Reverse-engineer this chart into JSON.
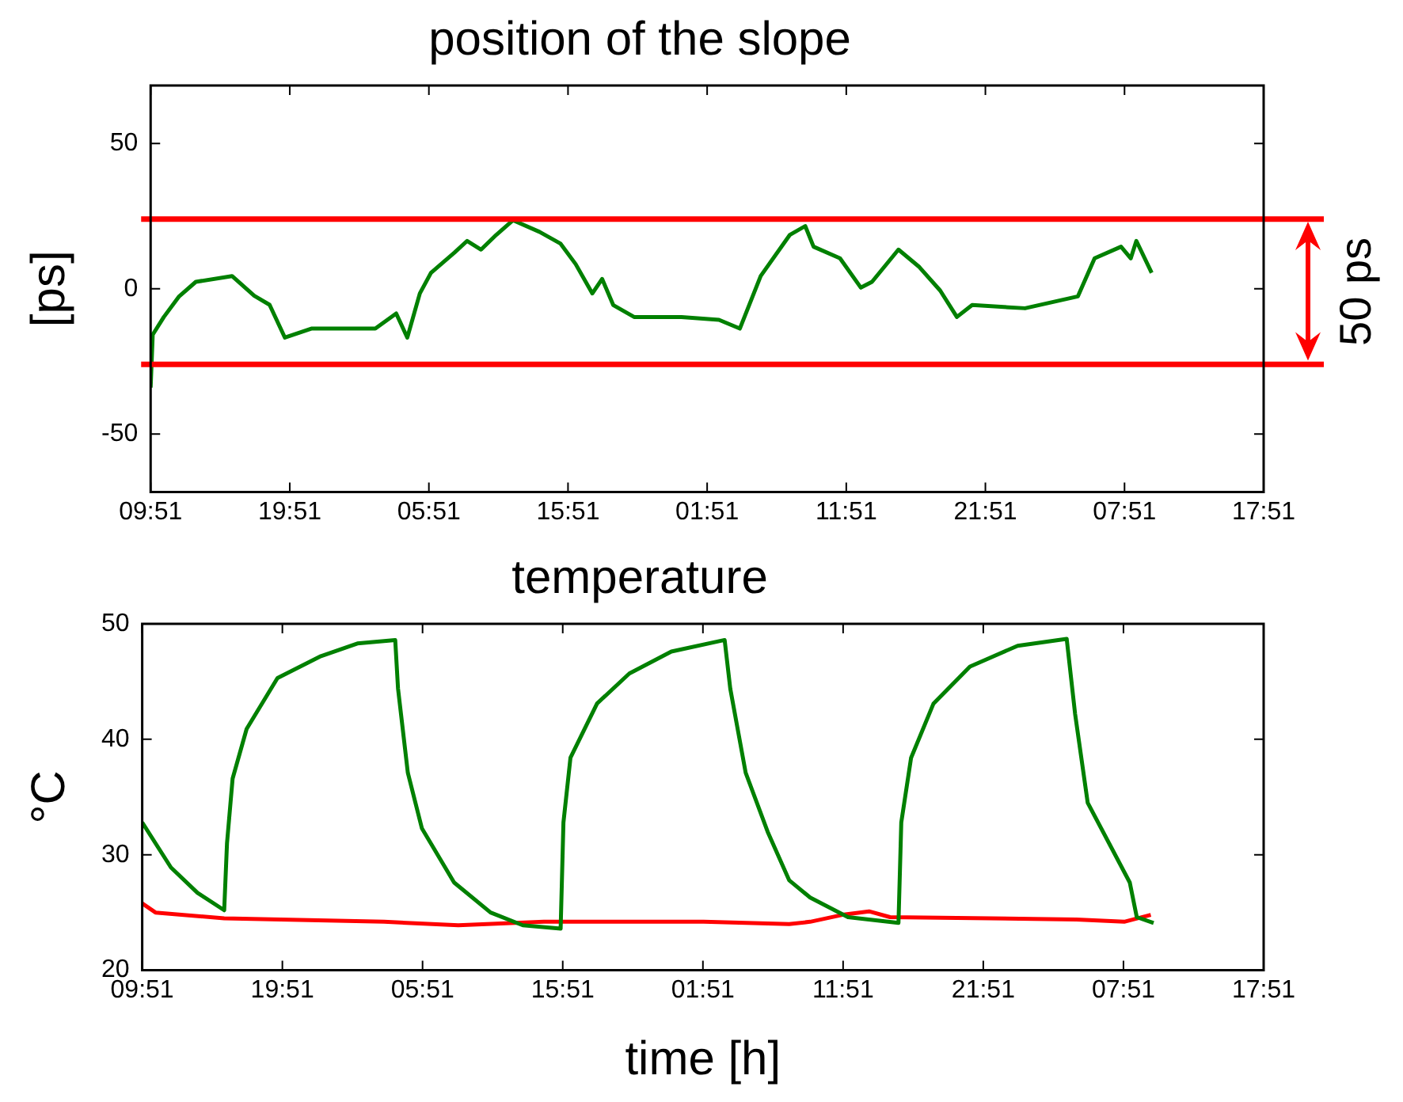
{
  "chart_data": [
    {
      "type": "line",
      "title": "position of the slope",
      "ylabel": "[ps]",
      "x": [
        "--01-01T09:51",
        "--01-01T10:00",
        "--01-01T10:48",
        "--01-01T11:54",
        "--01-01T13:06",
        "--01-01T15:42",
        "--01-01T17:18",
        "--01-01T18:24",
        "--01-01T19:30",
        "--01-01T21:24",
        "--01-01T23:42",
        "--01-02T02:00",
        "--01-02T03:30",
        "--01-02T04:18",
        "--01-02T05:12",
        "--01-02T06:00",
        "--01-02T07:42",
        "--01-02T08:36",
        "--01-02T09:36",
        "--01-02T10:42",
        "--01-02T11:54",
        "--01-02T13:48",
        "--01-02T15:18",
        "--01-02T16:24",
        "--01-02T17:36",
        "--01-02T18:18",
        "--01-02T19:06",
        "--01-02T20:36",
        "--01-03T00:00",
        "--01-03T02:42",
        "--01-03T04:12",
        "--01-03T05:42",
        "--01-03T07:48",
        "--01-03T08:54",
        "--01-03T09:30",
        "--01-03T11:24",
        "--01-03T12:54",
        "--01-03T13:42",
        "--01-03T15:36",
        "--01-03T17:06",
        "--01-03T18:36",
        "--01-03T19:48",
        "--01-03T20:54",
        "--01-04T00:42",
        "--01-04T04:30",
        "--01-04T05:42",
        "--01-04T07:36",
        "--01-04T08:18",
        "--01-04T08:42",
        "--01-04T09:48"
      ],
      "xlim": [
        "--01-01T09:51",
        "--01-04T17:51"
      ],
      "xticks": [
        {
          "value": "--01-01T09:51",
          "label": "09:51"
        },
        {
          "value": "--01-01T19:51",
          "label": "19:51"
        },
        {
          "value": "--01-02T05:51",
          "label": "05:51"
        },
        {
          "value": "--01-02T15:51",
          "label": "15:51"
        },
        {
          "value": "--01-03T01:51",
          "label": "01:51"
        },
        {
          "value": "--01-03T11:51",
          "label": "11:51"
        },
        {
          "value": "--01-03T21:51",
          "label": "21:51"
        },
        {
          "value": "--01-04T07:51",
          "label": "07:51"
        },
        {
          "value": "--01-04T17:51",
          "label": "17:51"
        }
      ],
      "ylim": [
        -70,
        70
      ],
      "yticks": [
        -50,
        0,
        50
      ],
      "series": [
        {
          "color": "#008000",
          "values": [
            -34,
            -15.8,
            -9.7,
            -2.6,
            2.4,
            4.4,
            -2.4,
            -5.5,
            -16.8,
            -13.7,
            -13.7,
            -13.7,
            -8.5,
            -16.8,
            -1.6,
            5.5,
            12.5,
            16.5,
            13.5,
            18.6,
            23.6,
            19.6,
            15.6,
            8.5,
            -1.6,
            3.4,
            -5.6,
            -9.7,
            -9.7,
            -10.7,
            -13.7,
            4.4,
            18.6,
            21.6,
            14.5,
            10.5,
            0.4,
            2.4,
            13.5,
            7.5,
            -0.6,
            -9.7,
            -5.6,
            -6.7,
            -2.6,
            10.5,
            14.5,
            10.5,
            16.5,
            5.5
          ]
        }
      ],
      "ref_lines": [
        {
          "axis": "y",
          "value": 24,
          "color": "#ff0000"
        },
        {
          "axis": "y",
          "value": -26,
          "color": "#ff0000"
        }
      ],
      "annotations": [
        "50 ps"
      ],
      "marker": "none",
      "grid": false
    },
    {
      "type": "line",
      "title": "temperature",
      "xlabel": "time [h]",
      "ylabel": "°C",
      "xlim": [
        "--01-01T09:51",
        "--01-04T17:51"
      ],
      "xticks": [
        {
          "value": "--01-01T09:51",
          "label": "09:51"
        },
        {
          "value": "--01-01T19:51",
          "label": "19:51"
        },
        {
          "value": "--01-02T05:51",
          "label": "05:51"
        },
        {
          "value": "--01-02T15:51",
          "label": "15:51"
        },
        {
          "value": "--01-03T01:51",
          "label": "01:51"
        },
        {
          "value": "--01-03T11:51",
          "label": "11:51"
        },
        {
          "value": "--01-03T21:51",
          "label": "21:51"
        },
        {
          "value": "--01-04T07:51",
          "label": "07:51"
        },
        {
          "value": "--01-04T17:51",
          "label": "17:51"
        }
      ],
      "ylim": [
        20,
        50
      ],
      "yticks": [
        20,
        30,
        40,
        50
      ],
      "series": [
        {
          "color": "#008000",
          "x": [
            "--01-01T09:51",
            "--01-01T11:54",
            "--01-01T13:48",
            "--01-01T15:42",
            "--01-01T15:54",
            "--01-01T16:18",
            "--01-01T17:18",
            "--01-01T19:30",
            "--01-01T22:36",
            "--01-02T01:12",
            "--01-02T03:54",
            "--01-02T04:06",
            "--01-02T04:48",
            "--01-02T05:48",
            "--01-02T08:06",
            "--01-02T10:42",
            "--01-02T13:00",
            "--01-02T15:42",
            "--01-02T15:54",
            "--01-02T16:24",
            "--01-02T18:18",
            "--01-02T20:36",
            "--01-02T23:36",
            "--01-03T03:24",
            "--01-03T03:48",
            "--01-03T04:54",
            "--01-03T06:30",
            "--01-03T08:00",
            "--01-03T09:30",
            "--01-03T12:12",
            "--01-03T15:48",
            "--01-03T16:00",
            "--01-03T16:42",
            "--01-03T18:18",
            "--01-03T20:54",
            "--01-04T00:18",
            "--01-04T03:48",
            "--01-04T04:24",
            "--01-04T05:18",
            "--01-04T08:18",
            "--01-04T08:48",
            "--01-04T10:00"
          ],
          "values": [
            32.8,
            28.9,
            26.7,
            25.2,
            31.0,
            36.6,
            40.9,
            45.3,
            47.2,
            48.3,
            48.6,
            44.4,
            37.1,
            32.3,
            27.6,
            25.0,
            23.9,
            23.6,
            32.8,
            38.4,
            43.1,
            45.7,
            47.6,
            48.6,
            44.4,
            37.1,
            31.9,
            27.8,
            26.3,
            24.6,
            24.1,
            32.8,
            38.4,
            43.1,
            46.3,
            48.1,
            48.7,
            42.2,
            34.5,
            27.6,
            24.6,
            24.1
          ]
        },
        {
          "color": "#ff0000",
          "x": [
            "--01-01T09:51",
            "--01-01T10:48",
            "--01-01T15:42",
            "--01-02T03:06",
            "--01-02T08:24",
            "--01-02T14:30",
            "--01-03T01:54",
            "--01-03T08:00",
            "--01-03T09:30",
            "--01-03T11:48",
            "--01-03T13:42",
            "--01-03T15:12",
            "--01-04T04:30",
            "--01-04T07:54",
            "--01-04T09:48"
          ],
          "values": [
            25.8,
            25.0,
            24.5,
            24.2,
            23.9,
            24.2,
            24.2,
            24.0,
            24.2,
            24.8,
            25.1,
            24.6,
            24.4,
            24.2,
            24.8
          ]
        }
      ],
      "marker": "none",
      "grid": false
    }
  ]
}
